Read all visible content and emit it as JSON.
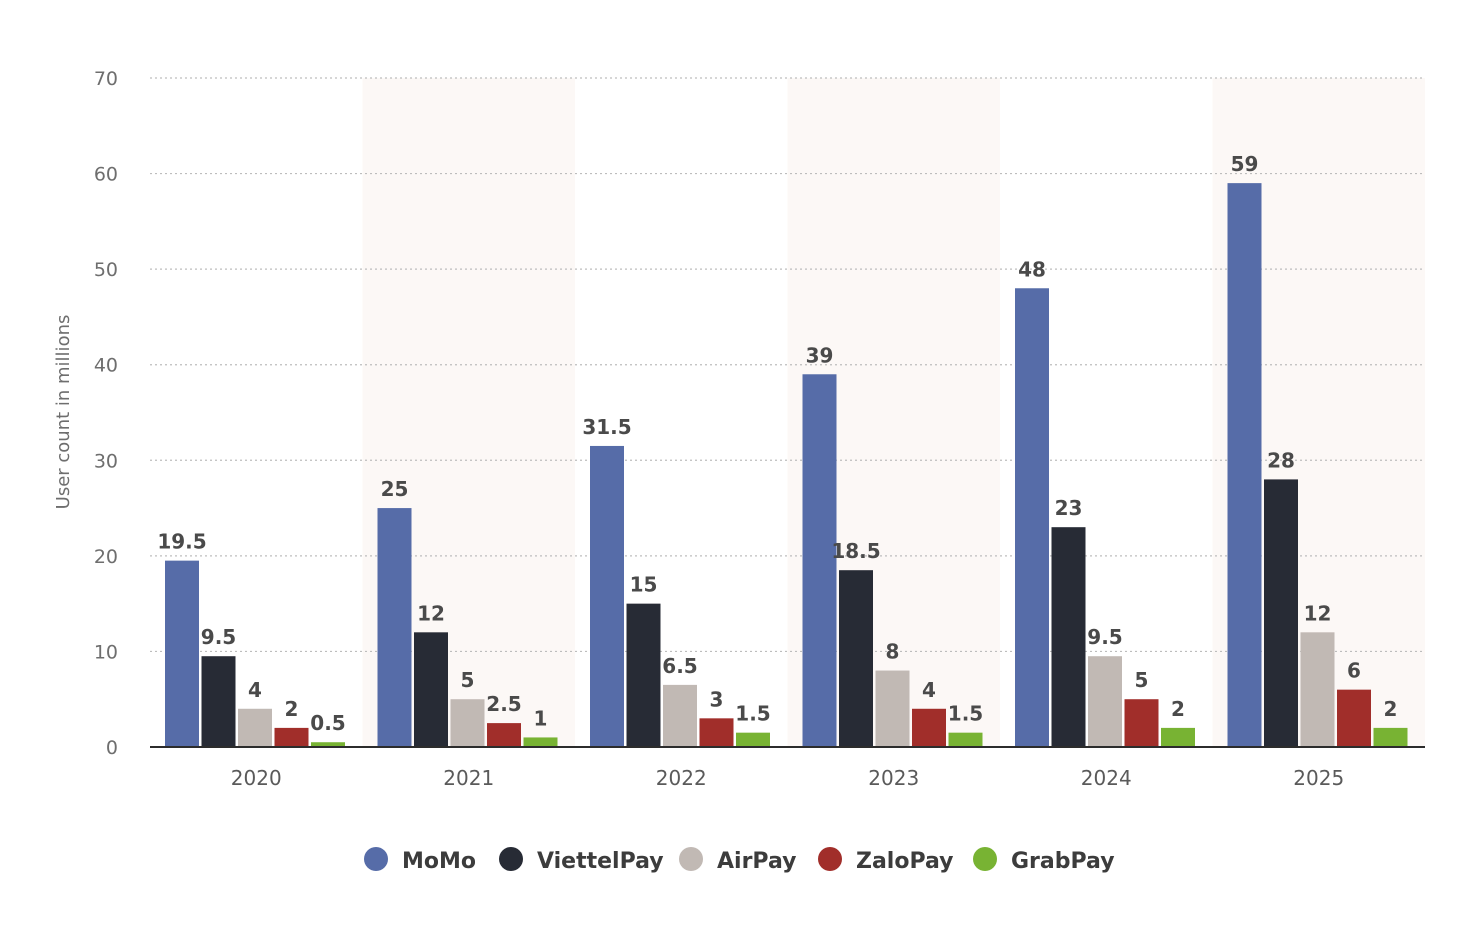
{
  "chart_data": {
    "type": "bar",
    "title": "",
    "xlabel": "",
    "ylabel": "User count in millions",
    "ylim": [
      0,
      70
    ],
    "yticks": [
      0,
      10,
      20,
      30,
      40,
      50,
      60,
      70
    ],
    "grid": true,
    "legend_position": "bottom",
    "categories": [
      "2020",
      "2021",
      "2022",
      "2023",
      "2024",
      "2025"
    ],
    "series": [
      {
        "name": "MoMo",
        "color": "#566ca8",
        "values": [
          19.5,
          25,
          31.5,
          39,
          48,
          59
        ],
        "labels": [
          "19.5",
          "25",
          "31.5",
          "39",
          "48",
          "59"
        ]
      },
      {
        "name": "ViettelPay",
        "color": "#272b35",
        "values": [
          9.5,
          12,
          15,
          18.5,
          23,
          28
        ],
        "labels": [
          "9.5",
          "12",
          "15",
          "18.5",
          "23",
          "28"
        ]
      },
      {
        "name": "AirPay",
        "color": "#c1b9b4",
        "values": [
          4,
          5,
          6.5,
          8,
          9.5,
          12
        ],
        "labels": [
          "4",
          "5",
          "6.5",
          "8",
          "9.5",
          "12"
        ]
      },
      {
        "name": "ZaloPay",
        "color": "#a12e2a",
        "values": [
          2,
          2.5,
          3,
          4,
          5,
          6
        ],
        "labels": [
          "2",
          "2.5",
          "3",
          "4",
          "5",
          "6"
        ]
      },
      {
        "name": "GrabPay",
        "color": "#78b333",
        "values": [
          0.5,
          1,
          1.5,
          1.5,
          2,
          2
        ],
        "labels": [
          "0.5",
          "1",
          "1.5",
          "1.5",
          "2",
          "2"
        ]
      }
    ]
  }
}
